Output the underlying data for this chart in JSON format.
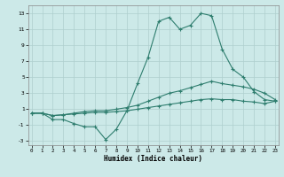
{
  "x": [
    0,
    1,
    2,
    3,
    4,
    5,
    6,
    7,
    8,
    9,
    10,
    11,
    12,
    13,
    14,
    15,
    16,
    17,
    18,
    19,
    20,
    21,
    22,
    23
  ],
  "line1": [
    0.5,
    0.5,
    -0.3,
    -0.3,
    -0.8,
    -1.2,
    -1.2,
    -2.8,
    -1.5,
    0.8,
    4.2,
    7.5,
    12.0,
    12.5,
    11.0,
    11.5,
    13.0,
    12.7,
    8.5,
    6.0,
    5.0,
    3.2,
    2.2,
    2.0
  ],
  "line2": [
    0.5,
    0.5,
    0.2,
    0.3,
    0.5,
    0.7,
    0.8,
    0.8,
    1.0,
    1.2,
    1.5,
    2.0,
    2.5,
    3.0,
    3.3,
    3.7,
    4.1,
    4.5,
    4.2,
    4.0,
    3.8,
    3.5,
    3.0,
    2.2
  ],
  "line3": [
    0.5,
    0.5,
    0.2,
    0.3,
    0.4,
    0.5,
    0.6,
    0.6,
    0.7,
    0.8,
    1.0,
    1.2,
    1.4,
    1.6,
    1.8,
    2.0,
    2.2,
    2.3,
    2.2,
    2.2,
    2.0,
    1.9,
    1.7,
    2.0
  ],
  "line_color": "#2e7d6e",
  "bg_color": "#cce9e8",
  "grid_color": "#aecfce",
  "xlabel": "Humidex (Indice chaleur)",
  "ylim": [
    -3.5,
    14
  ],
  "xlim": [
    -0.3,
    23.3
  ],
  "yticks": [
    -3,
    -1,
    1,
    3,
    5,
    7,
    9,
    11,
    13
  ],
  "xticks": [
    0,
    1,
    2,
    3,
    4,
    5,
    6,
    7,
    8,
    9,
    10,
    11,
    12,
    13,
    14,
    15,
    16,
    17,
    18,
    19,
    20,
    21,
    22,
    23
  ]
}
